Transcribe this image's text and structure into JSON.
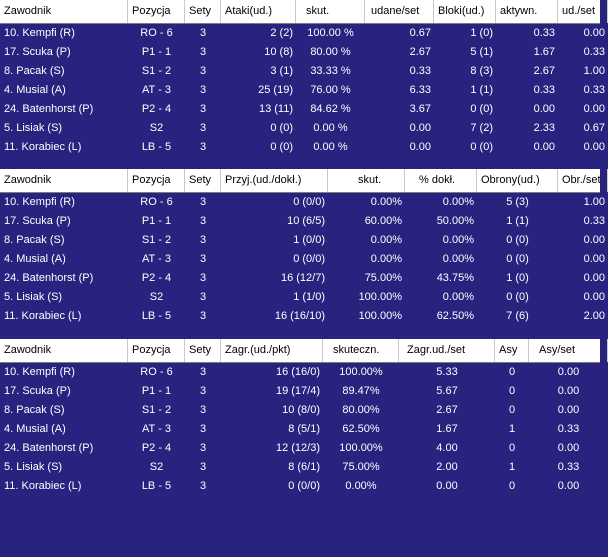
{
  "tables": [
    {
      "headers": [
        "Zawodnik",
        "Pozycja",
        "Sety",
        "Ataki(ud.)",
        "skut.",
        "udane/set",
        "Bloki(ud.)",
        "aktywn.",
        "ud./set"
      ],
      "rows": [
        [
          "10. Kempfi (R)",
          "RO - 6",
          "3",
          "2 (2)",
          "100.00 %",
          "0.67",
          "1 (0)",
          "0.33",
          "0.00"
        ],
        [
          "17. Scuka (P)",
          "P1 - 1",
          "3",
          "10 (8)",
          "80.00 %",
          "2.67",
          "5 (1)",
          "1.67",
          "0.33"
        ],
        [
          "8. Pacak (S)",
          "S1 - 2",
          "3",
          "3 (1)",
          "33.33 %",
          "0.33",
          "8 (3)",
          "2.67",
          "1.00"
        ],
        [
          "4. Musial (A)",
          "AT - 3",
          "3",
          "25 (19)",
          "76.00 %",
          "6.33",
          "1 (1)",
          "0.33",
          "0.33"
        ],
        [
          "24. Batenhorst (P)",
          "P2 - 4",
          "3",
          "13 (11)",
          "84.62 %",
          "3.67",
          "0 (0)",
          "0.00",
          "0.00"
        ],
        [
          "5. Lisiak (S)",
          "S2",
          "3",
          "0 (0)",
          "0.00 %",
          "0.00",
          "7 (2)",
          "2.33",
          "0.67"
        ],
        [
          "11. Korabiec (L)",
          "LB - 5",
          "3",
          "0 (0)",
          "0.00 %",
          "0.00",
          "0 (0)",
          "0.00",
          "0.00"
        ]
      ]
    },
    {
      "headers": [
        "Zawodnik",
        "Pozycja",
        "Sety",
        "Przyj.(ud./dokł.)",
        "skut.",
        "% dokł.",
        "Obrony(ud.)",
        "Obr./set"
      ],
      "rows": [
        [
          "10. Kempfi (R)",
          "RO - 6",
          "3",
          "0 (0/0)",
          "0.00%",
          "0.00%",
          "5 (3)",
          "1.00"
        ],
        [
          "17. Scuka (P)",
          "P1 - 1",
          "3",
          "10 (6/5)",
          "60.00%",
          "50.00%",
          "1 (1)",
          "0.33"
        ],
        [
          "8. Pacak (S)",
          "S1 - 2",
          "3",
          "1 (0/0)",
          "0.00%",
          "0.00%",
          "0 (0)",
          "0.00"
        ],
        [
          "4. Musial (A)",
          "AT - 3",
          "3",
          "0 (0/0)",
          "0.00%",
          "0.00%",
          "0 (0)",
          "0.00"
        ],
        [
          "24. Batenhorst (P)",
          "P2 - 4",
          "3",
          "16 (12/7)",
          "75.00%",
          "43.75%",
          "1 (0)",
          "0.00"
        ],
        [
          "5. Lisiak (S)",
          "S2",
          "3",
          "1 (1/0)",
          "100.00%",
          "0.00%",
          "0 (0)",
          "0.00"
        ],
        [
          "11. Korabiec (L)",
          "LB - 5",
          "3",
          "16 (16/10)",
          "100.00%",
          "62.50%",
          "7 (6)",
          "2.00"
        ]
      ]
    },
    {
      "headers": [
        "Zawodnik",
        "Pozycja",
        "Sety",
        "Zagr.(ud./pkt)",
        "skuteczn.",
        "Zagr.ud./set",
        "Asy",
        "Asy/set"
      ],
      "rows": [
        [
          "10. Kempfi (R)",
          "RO - 6",
          "3",
          "16 (16/0)",
          "100.00%",
          "5.33",
          "0",
          "0.00"
        ],
        [
          "17. Scuka (P)",
          "P1 - 1",
          "3",
          "19 (17/4)",
          "89.47%",
          "5.67",
          "0",
          "0.00"
        ],
        [
          "8. Pacak (S)",
          "S1 - 2",
          "3",
          "10 (8/0)",
          "80.00%",
          "2.67",
          "0",
          "0.00"
        ],
        [
          "4. Musial (A)",
          "AT - 3",
          "3",
          "8 (5/1)",
          "62.50%",
          "1.67",
          "1",
          "0.33"
        ],
        [
          "24. Batenhorst (P)",
          "P2 - 4",
          "3",
          "12 (12/3)",
          "100.00%",
          "4.00",
          "0",
          "0.00"
        ],
        [
          "5. Lisiak (S)",
          "S2",
          "3",
          "8 (6/1)",
          "75.00%",
          "2.00",
          "1",
          "0.33"
        ],
        [
          "11. Korabiec (L)",
          "LB - 5",
          "3",
          "0 (0/0)",
          "0.00%",
          "0.00",
          "0",
          "0.00"
        ]
      ]
    }
  ]
}
